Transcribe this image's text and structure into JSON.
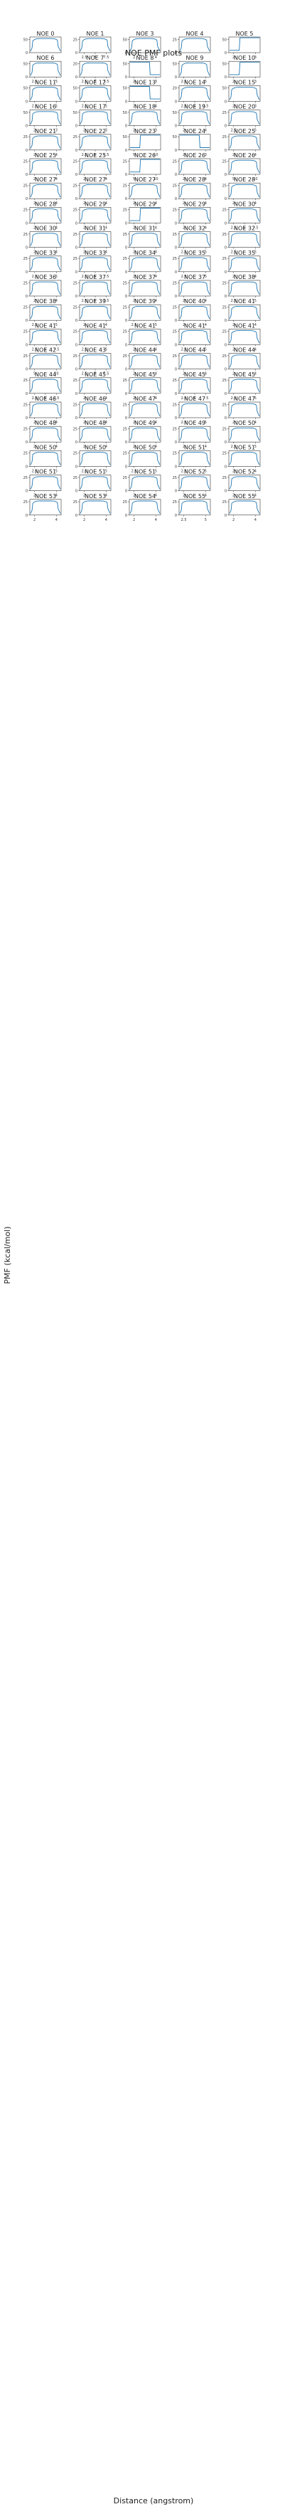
{
  "figure": {
    "title": "NOE PMF plots",
    "xlabel": "Distance (angstrom)",
    "ylabel": "PMF (kcal/mol)",
    "line_color": "#1f77b4",
    "axis_color": "#333333"
  },
  "chart_data": {
    "type": "line",
    "title": "NOE PMF plots",
    "xlabel": "Distance (angstrom)",
    "ylabel": "PMF (kcal/mol)",
    "grid": false,
    "legend": "none",
    "layout": "small multiples, 5 columns x 21 rows",
    "panels": [
      {
        "label": "NOE 0",
        "yticks": [
          0,
          50
        ],
        "xticks": [],
        "shape": "u"
      },
      {
        "label": "NOE 1",
        "yticks": [
          0,
          25
        ],
        "xticks": [
          2.5,
          5.0,
          7.5
        ],
        "shape": "u"
      },
      {
        "label": "NOE 3",
        "yticks": [
          0,
          50
        ],
        "xticks": [
          2,
          4
        ],
        "shape": "u"
      },
      {
        "label": "NOE 4",
        "yticks": [
          0,
          25
        ],
        "xticks": [],
        "shape": "u"
      },
      {
        "label": "NOE 5",
        "yticks": [
          0,
          50
        ],
        "xticks": [
          2,
          3
        ],
        "shape": "step-left"
      },
      {
        "label": "NOE 6",
        "yticks": [
          0,
          50
        ],
        "xticks": [
          2.5,
          5.0
        ],
        "shape": "u"
      },
      {
        "label": "NOE 7",
        "yticks": [
          0,
          20
        ],
        "xticks": [
          2.5,
          5.0,
          7.5
        ],
        "shape": "u"
      },
      {
        "label": "NOE 8",
        "yticks": [
          0,
          50
        ],
        "xticks": [
          2,
          3
        ],
        "shape": "step-right"
      },
      {
        "label": "NOE 9",
        "yticks": [
          0,
          50
        ],
        "xticks": [
          2.5,
          5.0
        ],
        "shape": "u"
      },
      {
        "label": "NOE 10",
        "yticks": [
          0,
          50
        ],
        "xticks": [
          2,
          3
        ],
        "shape": "step-left"
      },
      {
        "label": "NOE 11",
        "yticks": [
          0,
          50
        ],
        "xticks": [
          2.5,
          5.0
        ],
        "shape": "u"
      },
      {
        "label": "NOE 12",
        "yticks": [
          0,
          50
        ],
        "xticks": [
          2.5,
          5.0
        ],
        "shape": "u"
      },
      {
        "label": "NOE 13",
        "yticks": [
          0,
          50
        ],
        "xticks": [
          2,
          4
        ],
        "shape": "step-right"
      },
      {
        "label": "NOE 14",
        "yticks": [
          0,
          20
        ],
        "xticks": [
          2.5,
          5.0,
          7.5
        ],
        "shape": "u"
      },
      {
        "label": "NOE 15",
        "yticks": [
          0,
          50
        ],
        "xticks": [
          2,
          3
        ],
        "shape": "u"
      },
      {
        "label": "NOE 16",
        "yticks": [
          0,
          50
        ],
        "xticks": [
          2,
          3
        ],
        "shape": "u"
      },
      {
        "label": "NOE 17",
        "yticks": [
          0,
          50
        ],
        "xticks": [
          2,
          3
        ],
        "shape": "u"
      },
      {
        "label": "NOE 18",
        "yticks": [
          0,
          50
        ],
        "xticks": [
          2,
          3
        ],
        "shape": "u"
      },
      {
        "label": "NOE 19",
        "yticks": [
          0,
          50
        ],
        "xticks": [
          2,
          4
        ],
        "shape": "u"
      },
      {
        "label": "NOE 20",
        "yticks": [
          0,
          25
        ],
        "xticks": [
          2.5,
          5.0
        ],
        "shape": "u"
      },
      {
        "label": "NOE 21",
        "yticks": [
          0,
          25
        ],
        "xticks": [
          2,
          4
        ],
        "shape": "u"
      },
      {
        "label": "NOE 22",
        "yticks": [
          0,
          25
        ],
        "xticks": [
          2.5,
          5.0,
          7.5
        ],
        "shape": "u"
      },
      {
        "label": "NOE 23",
        "yticks": [
          0,
          50
        ],
        "xticks": [
          5,
          10
        ],
        "shape": "step-left"
      },
      {
        "label": "NOE 24",
        "yticks": [
          0,
          50
        ],
        "xticks": [
          2,
          3
        ],
        "shape": "step-right"
      },
      {
        "label": "NOE 25",
        "yticks": [
          0,
          25
        ],
        "xticks": [
          2,
          4
        ],
        "shape": "u"
      },
      {
        "label": "NOE 25",
        "yticks": [
          0,
          25
        ],
        "xticks": [
          2,
          4
        ],
        "shape": "u"
      },
      {
        "label": "NOE 25",
        "yticks": [
          0,
          25
        ],
        "xticks": [
          2,
          4
        ],
        "shape": "u"
      },
      {
        "label": "NOE 26",
        "yticks": [
          0,
          25
        ],
        "xticks": [
          5,
          10
        ],
        "shape": "step-left"
      },
      {
        "label": "NOE 26",
        "yticks": [
          0,
          25
        ],
        "xticks": [
          2,
          4
        ],
        "shape": "u"
      },
      {
        "label": "NOE 26",
        "yticks": [
          0,
          25
        ],
        "xticks": [
          5,
          10
        ],
        "shape": "u"
      },
      {
        "label": "NOE 27",
        "yticks": [
          0,
          25
        ],
        "xticks": [
          2,
          4
        ],
        "shape": "u"
      },
      {
        "label": "NOE 27",
        "yticks": [
          0,
          25
        ],
        "xticks": [
          2,
          4
        ],
        "shape": "u"
      },
      {
        "label": "NOE 27",
        "yticks": [
          0,
          25
        ],
        "xticks": [
          2,
          4
        ],
        "shape": "u"
      },
      {
        "label": "NOE 28",
        "yticks": [
          0,
          25
        ],
        "xticks": [
          2,
          4
        ],
        "shape": "u"
      },
      {
        "label": "NOE 28",
        "yticks": [
          0,
          25
        ],
        "xticks": [
          2,
          4
        ],
        "shape": "u"
      },
      {
        "label": "NOE 28",
        "yticks": [
          0,
          25
        ],
        "xticks": [
          2,
          4
        ],
        "shape": "u"
      },
      {
        "label": "NOE 29",
        "yticks": [
          0,
          25
        ],
        "xticks": [
          2,
          4
        ],
        "shape": "u"
      },
      {
        "label": "NOE 29",
        "yticks": [
          0,
          25
        ],
        "xticks": [
          2,
          4
        ],
        "shape": "step-left"
      },
      {
        "label": "NOE 29",
        "yticks": [
          0,
          25
        ],
        "xticks": [
          2,
          4
        ],
        "shape": "u"
      },
      {
        "label": "NOE 30",
        "yticks": [
          0,
          25
        ],
        "xticks": [
          2.5,
          5.0,
          7.5
        ],
        "shape": "u"
      },
      {
        "label": "NOE 30",
        "yticks": [
          0,
          25
        ],
        "xticks": [
          2,
          4
        ],
        "shape": "u"
      },
      {
        "label": "NOE 31",
        "yticks": [
          0,
          25
        ],
        "xticks": [
          2,
          4
        ],
        "shape": "u"
      },
      {
        "label": "NOE 31",
        "yticks": [
          0,
          25
        ],
        "xticks": [
          2,
          4
        ],
        "shape": "u"
      },
      {
        "label": "NOE 32",
        "yticks": [
          0,
          25
        ],
        "xticks": [
          2.5,
          5.0
        ],
        "shape": "u"
      },
      {
        "label": "NOE 32",
        "yticks": [
          0,
          25
        ],
        "xticks": [
          2.5,
          5.0
        ],
        "shape": "u"
      },
      {
        "label": "NOE 33",
        "yticks": [
          0,
          25
        ],
        "xticks": [
          2.5,
          5.0
        ],
        "shape": "u"
      },
      {
        "label": "NOE 33",
        "yticks": [
          0,
          25
        ],
        "xticks": [
          2.5,
          5.0,
          7.5
        ],
        "shape": "u"
      },
      {
        "label": "NOE 34",
        "yticks": [
          0,
          25
        ],
        "xticks": [
          2,
          4
        ],
        "shape": "u"
      },
      {
        "label": "NOE 35",
        "yticks": [
          0,
          25
        ],
        "xticks": [
          2.5,
          5.0
        ],
        "shape": "u"
      },
      {
        "label": "NOE 35",
        "yticks": [
          0,
          25
        ],
        "xticks": [
          2,
          4
        ],
        "shape": "u"
      },
      {
        "label": "NOE 36",
        "yticks": [
          0,
          25
        ],
        "xticks": [
          2,
          4
        ],
        "shape": "u"
      },
      {
        "label": "NOE 37",
        "yticks": [
          0,
          25
        ],
        "xticks": [
          2.5,
          5.0,
          7.5
        ],
        "shape": "u"
      },
      {
        "label": "NOE 37",
        "yticks": [
          0,
          25
        ],
        "xticks": [
          2,
          4
        ],
        "shape": "u"
      },
      {
        "label": "NOE 37",
        "yticks": [
          0,
          25
        ],
        "xticks": [
          2,
          4
        ],
        "shape": "u"
      },
      {
        "label": "NOE 38",
        "yticks": [
          0,
          25
        ],
        "xticks": [
          2.5,
          5.0
        ],
        "shape": "u"
      },
      {
        "label": "NOE 38",
        "yticks": [
          0,
          25
        ],
        "xticks": [
          2.5,
          5.0
        ],
        "shape": "u"
      },
      {
        "label": "NOE 39",
        "yticks": [
          0,
          25
        ],
        "xticks": [
          2,
          4
        ],
        "shape": "u"
      },
      {
        "label": "NOE 39",
        "yticks": [
          0,
          25
        ],
        "xticks": [
          2.5,
          5.0
        ],
        "shape": "u"
      },
      {
        "label": "NOE 40",
        "yticks": [
          0,
          25
        ],
        "xticks": [
          2,
          4
        ],
        "shape": "u"
      },
      {
        "label": "NOE 41",
        "yticks": [
          0,
          25
        ],
        "xticks": [
          2,
          4
        ],
        "shape": "u"
      },
      {
        "label": "NOE 41",
        "yticks": [
          0,
          25
        ],
        "xticks": [
          2.5,
          5.0,
          7.5
        ],
        "shape": "u"
      },
      {
        "label": "NOE 41",
        "yticks": [
          0,
          25
        ],
        "xticks": [
          2.5,
          5.0
        ],
        "shape": "u"
      },
      {
        "label": "NOE 41",
        "yticks": [
          0,
          25
        ],
        "xticks": [
          2,
          4
        ],
        "shape": "u"
      },
      {
        "label": "NOE 41",
        "yticks": [
          0,
          25
        ],
        "xticks": [
          2.5,
          5.0
        ],
        "shape": "u"
      },
      {
        "label": "NOE 41",
        "yticks": [
          0,
          25
        ],
        "xticks": [
          2,
          4
        ],
        "shape": "u"
      },
      {
        "label": "NOE 42",
        "yticks": [
          0,
          25
        ],
        "xticks": [
          5,
          10
        ],
        "shape": "u"
      },
      {
        "label": "NOE 43",
        "yticks": [
          0,
          25
        ],
        "xticks": [
          2.5,
          5.0,
          7.5
        ],
        "shape": "u"
      },
      {
        "label": "NOE 44",
        "yticks": [
          0,
          25
        ],
        "xticks": [
          2,
          4
        ],
        "shape": "u"
      },
      {
        "label": "NOE 44",
        "yticks": [
          0,
          25
        ],
        "xticks": [
          2,
          4
        ],
        "shape": "u"
      },
      {
        "label": "NOE 44",
        "yticks": [
          0,
          25
        ],
        "xticks": [
          2,
          4
        ],
        "shape": "u"
      },
      {
        "label": "NOE 44",
        "yticks": [
          0,
          25
        ],
        "xticks": [
          2.5,
          5.0,
          7.5
        ],
        "shape": "u"
      },
      {
        "label": "NOE 45",
        "yticks": [
          0,
          25
        ],
        "xticks": [
          2,
          4
        ],
        "shape": "u"
      },
      {
        "label": "NOE 45",
        "yticks": [
          0,
          25
        ],
        "xticks": [
          2,
          4
        ],
        "shape": "u"
      },
      {
        "label": "NOE 45",
        "yticks": [
          0,
          25
        ],
        "xticks": [
          2.5,
          5.0,
          7.5
        ],
        "shape": "u"
      },
      {
        "label": "NOE 45",
        "yticks": [
          0,
          25
        ],
        "xticks": [
          2.5,
          5.0
        ],
        "shape": "u"
      },
      {
        "label": "NOE 46",
        "yticks": [
          0,
          25
        ],
        "xticks": [
          2,
          4
        ],
        "shape": "u"
      },
      {
        "label": "NOE 46",
        "yticks": [
          0,
          25
        ],
        "xticks": [
          2,
          4
        ],
        "shape": "u"
      },
      {
        "label": "NOE 47",
        "yticks": [
          0,
          25
        ],
        "xticks": [
          2,
          4
        ],
        "shape": "u"
      },
      {
        "label": "NOE 47",
        "yticks": [
          0,
          25
        ],
        "xticks": [
          2.5,
          5.0
        ],
        "shape": "u"
      },
      {
        "label": "NOE 47",
        "yticks": [
          0,
          25
        ],
        "xticks": [
          2,
          4
        ],
        "shape": "u"
      },
      {
        "label": "NOE 48",
        "yticks": [
          0,
          25
        ],
        "xticks": [
          2,
          4
        ],
        "shape": "u"
      },
      {
        "label": "NOE 48",
        "yticks": [
          0,
          25
        ],
        "xticks": [
          2,
          4
        ],
        "shape": "u"
      },
      {
        "label": "NOE 49",
        "yticks": [
          0,
          25
        ],
        "xticks": [
          2,
          4
        ],
        "shape": "u"
      },
      {
        "label": "NOE 49",
        "yticks": [
          0,
          25
        ],
        "xticks": [
          2,
          4
        ],
        "shape": "u"
      },
      {
        "label": "NOE 50",
        "yticks": [
          0,
          25
        ],
        "xticks": [
          2.5,
          5.0
        ],
        "shape": "u"
      },
      {
        "label": "NOE 50",
        "yticks": [
          0,
          25
        ],
        "xticks": [
          2.5,
          5.0
        ],
        "shape": "u"
      },
      {
        "label": "NOE 50",
        "yticks": [
          0,
          25
        ],
        "xticks": [
          2.5,
          5.0
        ],
        "shape": "u"
      },
      {
        "label": "NOE 50",
        "yticks": [
          0,
          25
        ],
        "xticks": [
          2.5,
          5.0
        ],
        "shape": "u"
      },
      {
        "label": "NOE 51",
        "yticks": [
          0,
          25
        ],
        "xticks": [
          2.5,
          5.0
        ],
        "shape": "u"
      },
      {
        "label": "NOE 51",
        "yticks": [
          0,
          25
        ],
        "xticks": [
          2,
          4
        ],
        "shape": "u"
      },
      {
        "label": "NOE 51",
        "yticks": [
          0,
          25
        ],
        "xticks": [
          2,
          4
        ],
        "shape": "u"
      },
      {
        "label": "NOE 51",
        "yticks": [
          0,
          25
        ],
        "xticks": [
          2,
          4
        ],
        "shape": "u"
      },
      {
        "label": "NOE 51",
        "yticks": [
          0,
          25
        ],
        "xticks": [
          2,
          4
        ],
        "shape": "u"
      },
      {
        "label": "NOE 52",
        "yticks": [
          0,
          25
        ],
        "xticks": [
          2,
          4
        ],
        "shape": "u"
      },
      {
        "label": "NOE 52",
        "yticks": [
          0,
          25
        ],
        "xticks": [
          2,
          4
        ],
        "shape": "u"
      },
      {
        "label": "NOE 53",
        "yticks": [
          0,
          25
        ],
        "xticks": [
          2,
          4
        ],
        "shape": "u"
      },
      {
        "label": "NOE 53",
        "yticks": [
          0,
          25
        ],
        "xticks": [
          2,
          4
        ],
        "shape": "u"
      },
      {
        "label": "NOE 54",
        "yticks": [
          0,
          25
        ],
        "xticks": [
          2,
          4
        ],
        "shape": "u"
      },
      {
        "label": "NOE 55",
        "yticks": [
          0,
          25
        ],
        "xticks": [
          2.5,
          5.0
        ],
        "shape": "u"
      },
      {
        "label": "NOE 55",
        "yticks": [
          0,
          25
        ],
        "xticks": [
          2,
          4
        ],
        "shape": "u"
      }
    ]
  }
}
